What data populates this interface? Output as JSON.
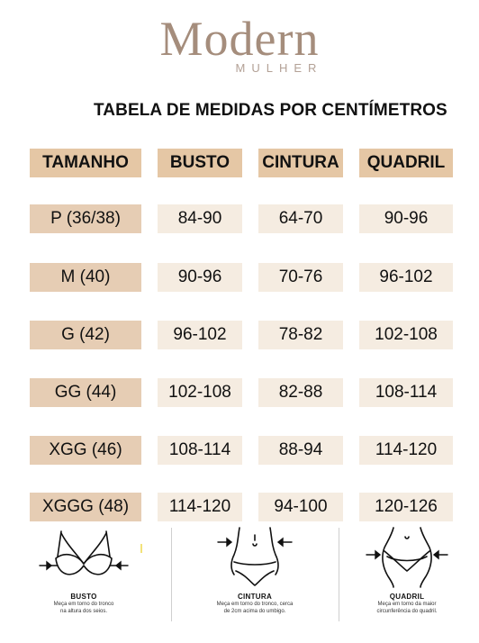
{
  "logo": {
    "main": "Modern",
    "sub": "MULHER"
  },
  "heading": "TABELA DE MEDIDAS POR CENTÍMETROS",
  "table": {
    "headers": [
      "TAMANHO",
      "BUSTO",
      "CINTURA",
      "QUADRIL"
    ],
    "rows": [
      {
        "size": "P (36/38)",
        "busto": "84-90",
        "cintura": "64-70",
        "quadril": "90-96"
      },
      {
        "size": "M (40)",
        "busto": "90-96",
        "cintura": "70-76",
        "quadril": "96-102"
      },
      {
        "size": "G (42)",
        "busto": "96-102",
        "cintura": "78-82",
        "quadril": "102-108"
      },
      {
        "size": "GG (44)",
        "busto": "102-108",
        "cintura": "82-88",
        "quadril": "108-114"
      },
      {
        "size": "XGG (46)",
        "busto": "108-114",
        "cintura": "88-94",
        "quadril": "114-120"
      },
      {
        "size": "XGGG (48)",
        "busto": "114-120",
        "cintura": "94-100",
        "quadril": "120-126"
      }
    ]
  },
  "guide": {
    "busto": {
      "title": "BUSTO",
      "line1": "Meça em torno do tronco",
      "line2": "na altura dos seios."
    },
    "cintura": {
      "title": "CINTURA",
      "line1": "Meça em torno do tronco, cerca",
      "line2": "de 2cm acima do umbigo."
    },
    "quadril": {
      "title": "QUADRIL",
      "line1": "Meça em torno da maior",
      "line2": "circunferência do quadril."
    }
  },
  "colors": {
    "logo": "#a58d7c",
    "header_bg": "#e5c7a5",
    "size_bg": "#e6cdb4",
    "value_bg": "#f5ece1"
  }
}
